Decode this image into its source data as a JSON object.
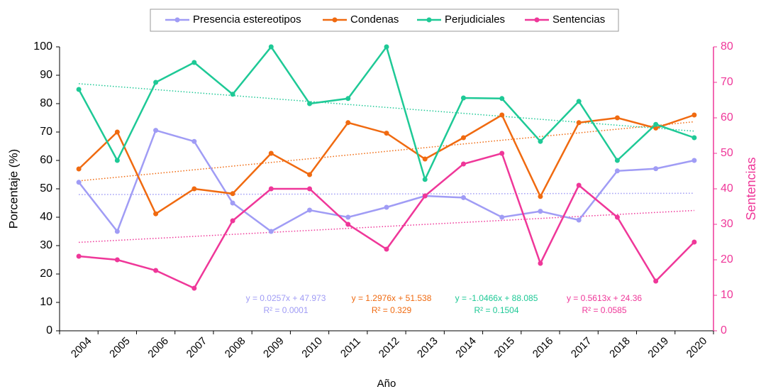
{
  "chart_data": {
    "type": "line",
    "categories": [
      "2004",
      "2005",
      "2006",
      "2007",
      "2008",
      "2009",
      "2010",
      "2011",
      "2012",
      "2013",
      "2014",
      "2015",
      "2016",
      "2017",
      "2018",
      "2019",
      "2020"
    ],
    "series": [
      {
        "name": "Presencia estereotipos",
        "color": "#a09cf5",
        "trendline": true,
        "trend_equation": "y = 0.0257x + 47.973",
        "trend_r2": "R² = 0.0001",
        "values": [
          52.3,
          35,
          70.6,
          66.7,
          45,
          35,
          42.5,
          40,
          43.5,
          47.5,
          46.9,
          40,
          42.1,
          39,
          56.3,
          57.1,
          60
        ]
      },
      {
        "name": "Condenas",
        "color": "#f06a10",
        "trendline": true,
        "trend_equation": "y = 1.2976x + 51.538",
        "trend_r2": "R² = 0.329",
        "values": [
          57,
          70,
          41.2,
          50,
          48.3,
          62.5,
          55,
          73.3,
          69.6,
          60.5,
          68,
          76,
          47.3,
          73.3,
          75,
          71.4,
          76
        ]
      },
      {
        "name": "Perjudiciales",
        "color": "#1ec996",
        "trendline": true,
        "trend_equation": "y = -1.0466x + 88.085",
        "trend_r2": "R² = 0.1504",
        "values": [
          85,
          60,
          87.5,
          94.5,
          83.3,
          100,
          80,
          81.8,
          100,
          53.3,
          82,
          81.8,
          66.7,
          80.8,
          60,
          72.7,
          68
        ]
      },
      {
        "name": "Sentencias",
        "color": "#ef3799",
        "axis": "y2",
        "trendline": true,
        "trend_equation": "y = 0.5613x + 24.36",
        "trend_r2": "R² = 0.0585",
        "values": [
          21,
          20,
          17,
          12,
          31,
          40,
          40,
          30,
          23,
          38,
          47,
          50,
          19,
          41,
          32,
          14,
          25
        ]
      }
    ],
    "xlabel": "Año",
    "ylabel": "Porcentaje (%)",
    "y2label": "Sentencias",
    "ylim": [
      0,
      100
    ],
    "yticks": [
      0,
      10,
      20,
      30,
      40,
      50,
      60,
      70,
      80,
      90,
      100
    ],
    "y2lim": [
      0,
      80
    ],
    "y2ticks": [
      0,
      10,
      20,
      30,
      40,
      50,
      60,
      70,
      80
    ],
    "y2color": "#ef3799",
    "legend": "top"
  }
}
